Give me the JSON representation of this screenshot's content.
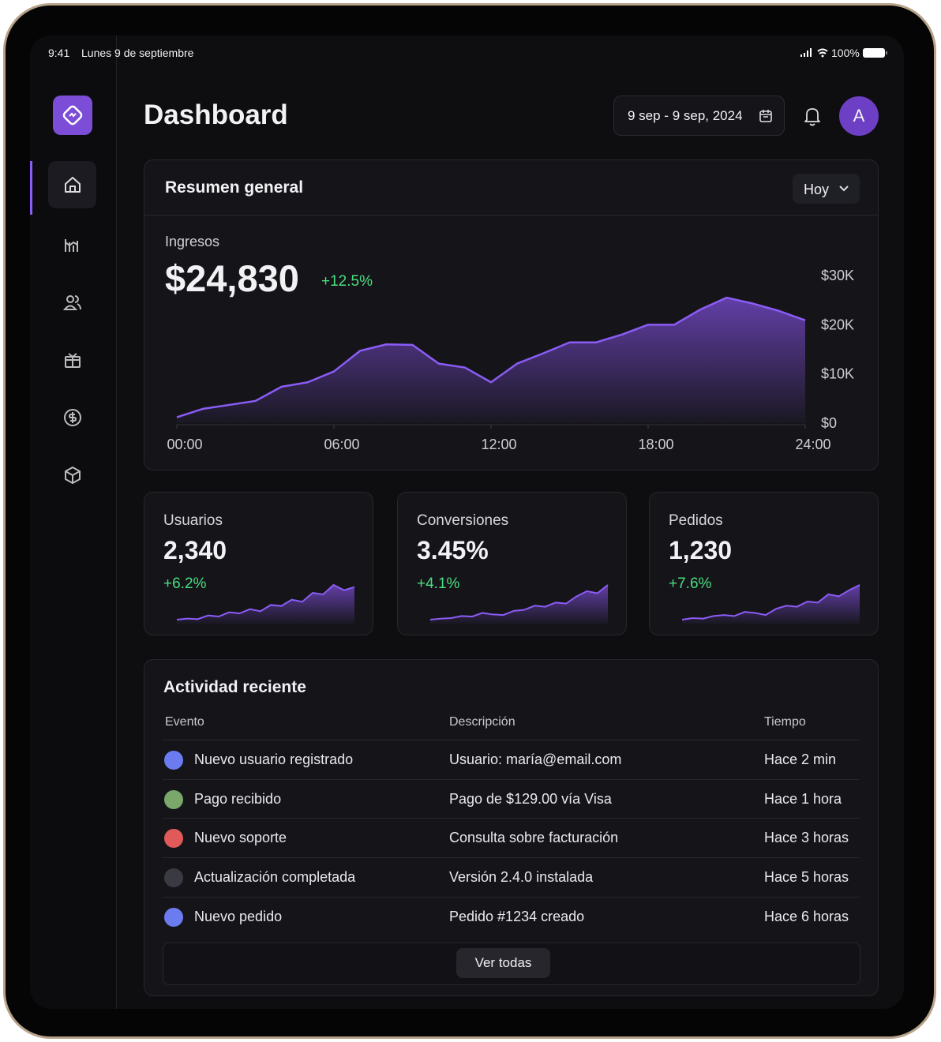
{
  "status_bar": {
    "time": "9:41",
    "date": "Lunes 9 de septiembre",
    "battery": "100%"
  },
  "header": {
    "title": "Dashboard",
    "date_range": "9 sep - 9 sep, 2024",
    "avatar": "A"
  },
  "overview": {
    "title": "Resumen general",
    "period": "Hoy",
    "metric_label": "Ingresos",
    "metric_value": "$24,830",
    "metric_change": "+12.5%",
    "chart": {
      "type": "area",
      "color": "#8b5cf6",
      "x": [
        0,
        1,
        2,
        3,
        4,
        5,
        6,
        7,
        8,
        9,
        10,
        11,
        12,
        13,
        14,
        15,
        16,
        17,
        18,
        19,
        20,
        21,
        22,
        23,
        24
      ],
      "values": [
        1200,
        2900,
        3700,
        4500,
        7400,
        8300,
        10500,
        14700,
        16000,
        15900,
        12100,
        11300,
        8300,
        12100,
        14200,
        16400,
        16400,
        18000,
        20000,
        20000,
        23100,
        25500,
        24300,
        22800,
        20900
      ],
      "xlim": [
        0,
        24
      ],
      "xticks": [
        {
          "value": 0,
          "label": "00:00"
        },
        {
          "value": 6,
          "label": "06:00"
        },
        {
          "value": 12,
          "label": "12:00"
        },
        {
          "value": 18,
          "label": "18:00"
        },
        {
          "value": 24,
          "label": "24:00"
        }
      ],
      "ylim": [
        0,
        30000
      ],
      "yticks": [
        {
          "value": 0,
          "label": "$0"
        },
        {
          "value": 10000,
          "label": "$10K"
        },
        {
          "value": 20000,
          "label": "$20K"
        },
        {
          "value": 30000,
          "label": "$30K"
        }
      ]
    }
  },
  "stats": [
    {
      "label": "Usuarios",
      "value": "2,340",
      "change": "+6.2%",
      "trend": [
        4,
        6,
        5,
        12,
        10,
        18,
        16,
        24,
        20,
        32,
        30,
        42,
        38,
        55,
        52,
        70,
        60,
        66
      ]
    },
    {
      "label": "Conversiones",
      "value": "3.45%",
      "change": "+4.1%",
      "trend": [
        3,
        5,
        6,
        10,
        9,
        16,
        13,
        12,
        20,
        22,
        30,
        28,
        36,
        34,
        48,
        58,
        54,
        70
      ]
    },
    {
      "label": "Pedidos",
      "value": "1,230",
      "change": "+7.6%",
      "trend": [
        3,
        6,
        5,
        10,
        12,
        10,
        18,
        16,
        12,
        24,
        30,
        28,
        38,
        36,
        52,
        48,
        60,
        70
      ]
    }
  ],
  "activity": {
    "title": "Actividad reciente",
    "columns": [
      "Evento",
      "Descripción",
      "Tiempo"
    ],
    "rows": [
      [
        "Nuevo usuario registrado",
        "Usuario: maría@email.com",
        "Hace 2 min"
      ],
      [
        "Pago recibido",
        "Pago de $129.00 vía Visa",
        "Hace 1 hora"
      ],
      [
        "Nuevo soporte",
        "Consulta sobre facturación",
        "Hace 3 horas"
      ],
      [
        "Actualización completada",
        "Versión 2.4.0 instalada",
        "Hace 5 horas"
      ],
      [
        "Nuevo pedido",
        "Pedido #1234 creado",
        "Hace 6 horas"
      ]
    ],
    "button": "Ver todas"
  }
}
